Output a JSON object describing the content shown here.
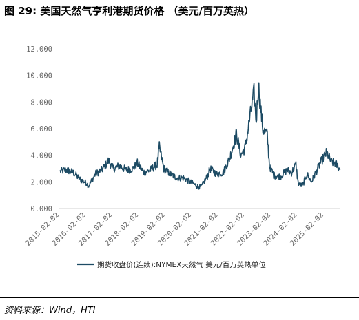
{
  "header": {
    "title": "图 29:  美国天然气亨利港期货价格 （美元/百万英热）"
  },
  "footer": {
    "source": "资料来源：Wind，HTI"
  },
  "chart_data": {
    "type": "line",
    "title": "图 29:  美国天然气亨利港期货价格 （美元/百万英热）",
    "xlabel": "",
    "ylabel": "",
    "ylim": [
      0,
      12
    ],
    "y_ticks": [
      "0.000",
      "2.000",
      "4.000",
      "6.000",
      "8.000",
      "10.000",
      "12.000"
    ],
    "x_ticks": [
      "2015-02-02",
      "2016-02-02",
      "2017-02-02",
      "2018-02-02",
      "2019-02-02",
      "2020-02-02",
      "2021-02-02",
      "2022-02-02",
      "2023-02-02",
      "2024-02-02",
      "2025-02-02"
    ],
    "grid": false,
    "legend_position": "bottom",
    "series_color": "#1d4b64",
    "series": [
      {
        "name": "期货收盘价(连续):NYMEX天然气  美元/百万英热单位",
        "x": [
          "2015-02",
          "2015-05",
          "2015-08",
          "2015-11",
          "2016-02",
          "2016-03",
          "2016-06",
          "2016-09",
          "2016-12",
          "2017-02",
          "2017-05",
          "2017-08",
          "2017-11",
          "2018-01",
          "2018-04",
          "2018-07",
          "2018-10",
          "2018-11",
          "2019-01",
          "2019-04",
          "2019-07",
          "2019-10",
          "2020-01",
          "2020-04",
          "2020-06",
          "2020-09",
          "2020-10",
          "2021-01",
          "2021-04",
          "2021-07",
          "2021-10",
          "2021-12",
          "2022-02",
          "2022-04",
          "2022-06",
          "2022-07",
          "2022-08",
          "2022-09",
          "2022-10",
          "2022-12",
          "2023-01",
          "2023-03",
          "2023-06",
          "2023-09",
          "2023-11",
          "2024-01",
          "2024-02",
          "2024-04",
          "2024-06",
          "2024-08",
          "2024-10",
          "2024-12",
          "2025-03",
          "2025-05",
          "2025-07",
          "2025-09"
        ],
        "values": [
          2.8,
          2.9,
          2.7,
          2.2,
          1.9,
          1.7,
          2.6,
          2.9,
          3.6,
          3.0,
          3.2,
          2.9,
          3.0,
          3.4,
          2.7,
          2.9,
          3.3,
          4.6,
          3.0,
          2.6,
          2.3,
          2.3,
          2.0,
          1.7,
          1.6,
          2.5,
          3.0,
          2.6,
          2.7,
          3.8,
          5.6,
          4.0,
          4.6,
          6.7,
          8.7,
          6.5,
          9.3,
          7.5,
          6.0,
          5.5,
          3.2,
          2.5,
          2.4,
          2.9,
          2.7,
          3.3,
          1.9,
          1.7,
          2.6,
          2.0,
          2.7,
          3.4,
          4.2,
          3.5,
          3.4,
          2.9
        ]
      }
    ]
  }
}
